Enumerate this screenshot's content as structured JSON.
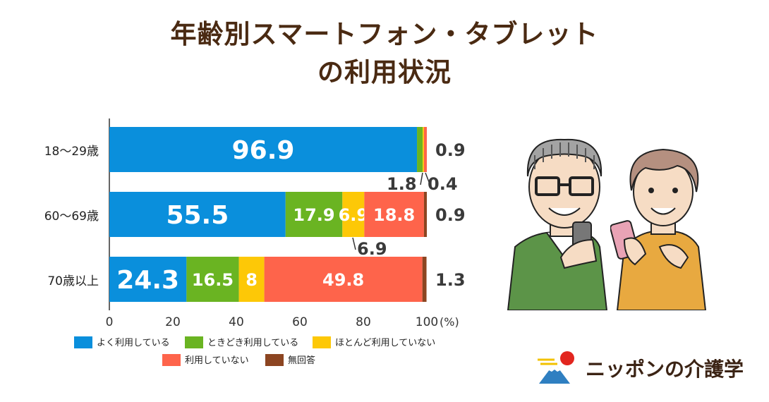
{
  "title_lines": [
    "年齢別スマートフォン・タブレット",
    "の利用状況"
  ],
  "chart_data": {
    "type": "bar",
    "orientation": "horizontal",
    "stacked": true,
    "unit": "(%)",
    "xlim": [
      0,
      100
    ],
    "x_ticks": [
      0,
      20,
      40,
      60,
      80,
      100
    ],
    "categories": [
      "18〜29歳",
      "60〜69歳",
      "70歳以上"
    ],
    "series": [
      {
        "name": "よく利用している",
        "color": "#0a8fdc",
        "values": [
          96.9,
          55.5,
          24.3
        ]
      },
      {
        "name": "ときどき利用している",
        "color": "#6ab422",
        "values": [
          1.8,
          17.9,
          16.5
        ]
      },
      {
        "name": "ほとんど利用していない",
        "color": "#fdc807",
        "values": [
          0.4,
          6.9,
          8
        ]
      },
      {
        "name": "利用していない",
        "color": "#fe644b",
        "values": [
          0.9,
          18.8,
          49.8
        ]
      },
      {
        "name": "無回答",
        "color": "#8c4521",
        "values": [
          0,
          0.9,
          1.3
        ]
      }
    ],
    "outside_labels": [
      "0.9",
      "1.8",
      "0.4",
      "0.9",
      "6.9",
      "1.3"
    ],
    "legend_position": "bottom"
  },
  "brand": {
    "logo_text": "ニッポンの介護学"
  }
}
